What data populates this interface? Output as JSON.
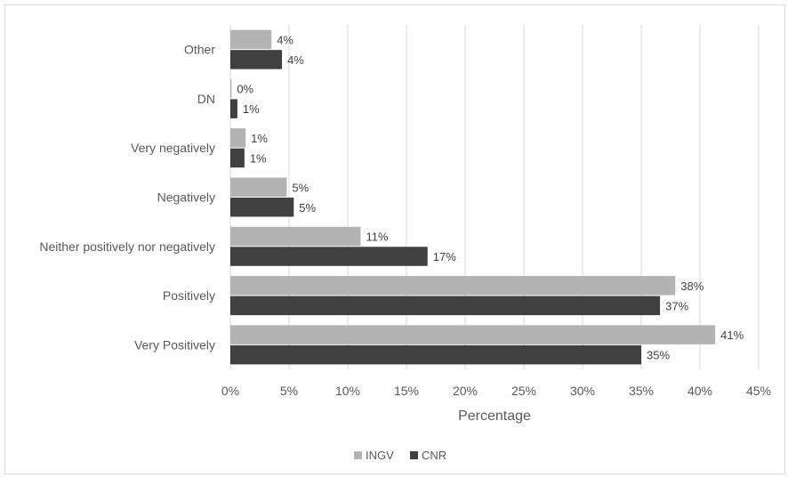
{
  "chart_data": {
    "type": "bar",
    "orientation": "horizontal",
    "categories": [
      "Very Positively",
      "Positively",
      "Neither positively nor negatively",
      "Negatively",
      "Very negatively",
      "DN",
      "Other"
    ],
    "series": [
      {
        "name": "INGV",
        "color": "#b3b3b3",
        "values": [
          41.3,
          37.9,
          11.1,
          4.8,
          1.3,
          0.1,
          3.5
        ],
        "labels": [
          "41%",
          "38%",
          "11%",
          "5%",
          "1%",
          "0%",
          "4%"
        ]
      },
      {
        "name": "CNR",
        "color": "#404040",
        "values": [
          35.0,
          36.6,
          16.8,
          5.4,
          1.2,
          0.6,
          4.4
        ],
        "labels": [
          "35%",
          "37%",
          "17%",
          "5%",
          "1%",
          "1%",
          "4%"
        ]
      }
    ],
    "xlim": [
      0,
      45
    ],
    "xticks": [
      0,
      5,
      10,
      15,
      20,
      25,
      30,
      35,
      40,
      45
    ],
    "xtick_labels": [
      "0%",
      "5%",
      "10%",
      "15%",
      "20%",
      "25%",
      "30%",
      "35%",
      "40%",
      "45%"
    ],
    "xlabel": "Percentage",
    "ylabel": "",
    "grid": "vertical",
    "legend_position": "bottom"
  }
}
